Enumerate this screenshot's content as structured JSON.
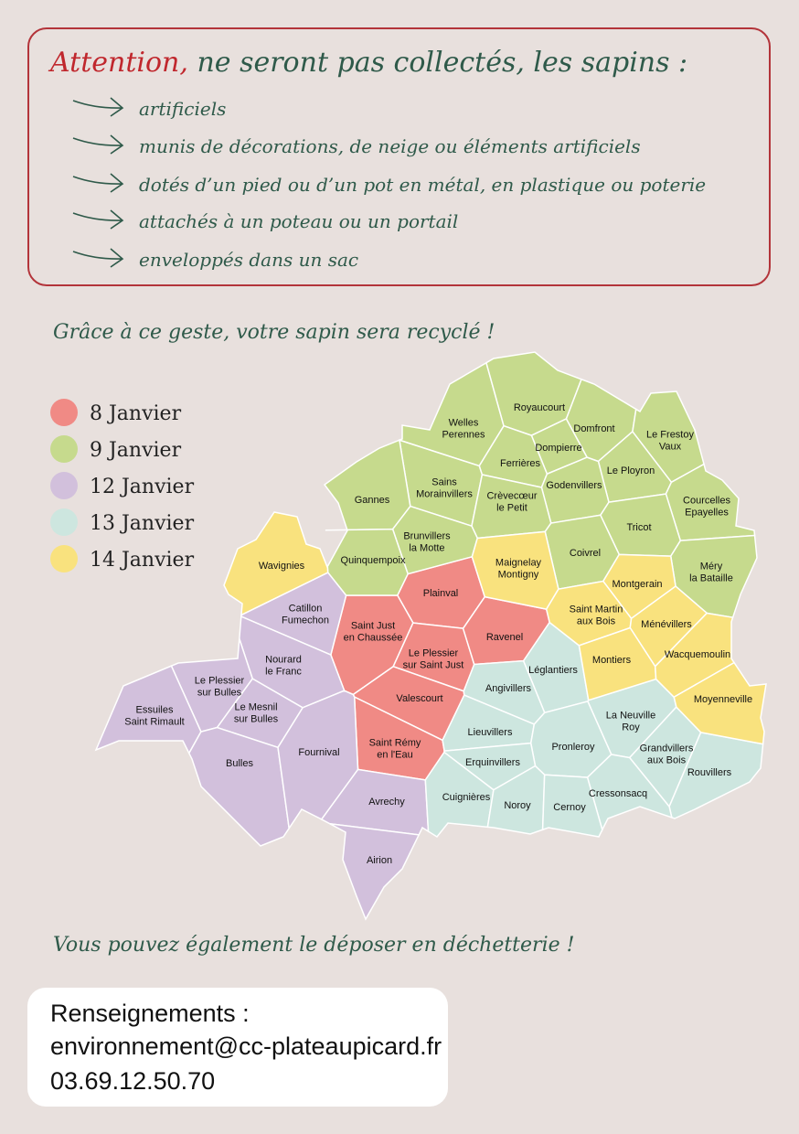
{
  "header": {
    "warning": "Attention,",
    "title": "ne seront pas collectés, les sapins :",
    "items": [
      "artificiels",
      "munis de décorations, de neige ou éléments artificiels",
      "dotés d’un pied ou d’un pot en métal, en plastique ou poterie",
      "attachés à un poteau ou un portail",
      "enveloppés dans un sac"
    ]
  },
  "tagline": "Grâce à ce geste, votre sapin sera recyclé !",
  "map": {
    "zones": [
      {
        "date": "8 Janvier",
        "color": "#f08a85",
        "communes": [
          [
            "Plainval"
          ],
          [
            "Saint Just",
            "en Chaussée"
          ],
          [
            "Le Plessier",
            "sur Saint Just"
          ],
          [
            "Ravenel"
          ],
          [
            "Valescourt"
          ],
          [
            "Saint Rémy",
            "en l'Eau"
          ]
        ]
      },
      {
        "date": "9 Janvier",
        "color": "#c6da8d",
        "communes": [
          [
            "Welles",
            "Perennes"
          ],
          [
            "Royaucourt"
          ],
          [
            "Domfront"
          ],
          [
            "Dompierre"
          ],
          [
            "Ferrières"
          ],
          [
            "Le Frestoy",
            "Vaux"
          ],
          [
            "Le Ployron"
          ],
          [
            "Godenvillers"
          ],
          [
            "Sains",
            "Morainvillers"
          ],
          [
            "Crèvecœur",
            "le Petit"
          ],
          [
            "Gannes"
          ],
          [
            "Courcelles",
            "Epayelles"
          ],
          [
            "Tricot"
          ],
          [
            "Brunvillers",
            "la Motte"
          ],
          [
            "Quinquempoix"
          ],
          [
            "Coivrel"
          ],
          [
            "Méry",
            "la Bataille"
          ]
        ]
      },
      {
        "date": "12 Janvier",
        "color": "#d2c0dc",
        "communes": [
          [
            "Catillon",
            "Fumechon"
          ],
          [
            "Nourard",
            "le Franc"
          ],
          [
            "Le Plessier",
            "sur Bulles"
          ],
          [
            "Essuiles",
            "Saint Rimault"
          ],
          [
            "Le Mesnil",
            "sur Bulles"
          ],
          [
            "Bulles"
          ],
          [
            "Fournival"
          ],
          [
            "Avrechy"
          ],
          [
            "Airion"
          ]
        ]
      },
      {
        "date": "13 Janvier",
        "color": "#cde6df",
        "communes": [
          [
            "Léglantiers"
          ],
          [
            "Angivillers"
          ],
          [
            "La Neuville",
            "Roy"
          ],
          [
            "Lieuvillers"
          ],
          [
            "Pronleroy"
          ],
          [
            "Grandvillers",
            "aux Bois"
          ],
          [
            "Rouvillers"
          ],
          [
            "Erquinvillers"
          ],
          [
            "Cressonsacq"
          ],
          [
            "Cuignières"
          ],
          [
            "Noroy"
          ],
          [
            "Cernoy"
          ]
        ]
      },
      {
        "date": "14 Janvier",
        "color": "#f9e27e",
        "communes": [
          [
            "Wavignies"
          ],
          [
            "Maignelay",
            "Montigny"
          ],
          [
            "Montgerain"
          ],
          [
            "Saint Martin",
            "aux Bois"
          ],
          [
            "Ménévillers"
          ],
          [
            "Montiers"
          ],
          [
            "Wacquemoulin"
          ],
          [
            "Moyenneville"
          ]
        ]
      }
    ]
  },
  "footer_note": "Vous pouvez également le déposer en déchetterie !",
  "contact": {
    "title": "Renseignements :",
    "email": "environnement@cc-plateaupicard.fr",
    "phone": "03.69.12.50.70"
  }
}
